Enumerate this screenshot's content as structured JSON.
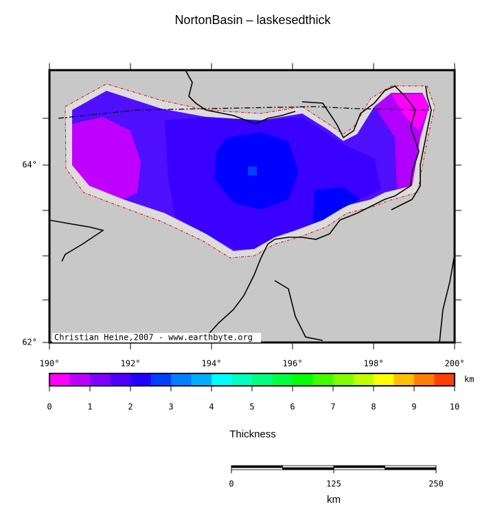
{
  "title": "NortonBasin – laskesedthick",
  "credit": "Christian Heine,2007 - www.earthbyte.org",
  "map": {
    "lonlim": [
      190,
      200
    ],
    "latlim": [
      62,
      65.07
    ],
    "lon_ticks": [
      {
        "value": 190,
        "label": "190°"
      },
      {
        "value": 192,
        "label": "192°"
      },
      {
        "value": 194,
        "label": "194°"
      },
      {
        "value": 196,
        "label": "196°"
      },
      {
        "value": 198,
        "label": "198°"
      },
      {
        "value": 200,
        "label": "200°"
      }
    ],
    "lat_ticks": [
      {
        "value": 62,
        "label": "62°"
      },
      {
        "value": 64,
        "label": "64°"
      }
    ]
  },
  "colorbar": {
    "label": "Thickness",
    "unit": "km",
    "ticks": [
      0,
      1,
      2,
      3,
      4,
      5,
      6,
      7,
      8,
      9,
      10
    ],
    "colors": [
      "#ff00ff",
      "#c000ff",
      "#8000ff",
      "#5000ff",
      "#2000ff",
      "#0040ff",
      "#0080ff",
      "#00b0ff",
      "#00ffff",
      "#00ffc0",
      "#00ff80",
      "#00ff40",
      "#00ff00",
      "#40ff00",
      "#80ff00",
      "#c0ff00",
      "#ffff00",
      "#ffc000",
      "#ff8000",
      "#ff4000"
    ]
  },
  "scalebar": {
    "ticks": [
      0,
      125,
      250
    ],
    "unit": "km"
  }
}
